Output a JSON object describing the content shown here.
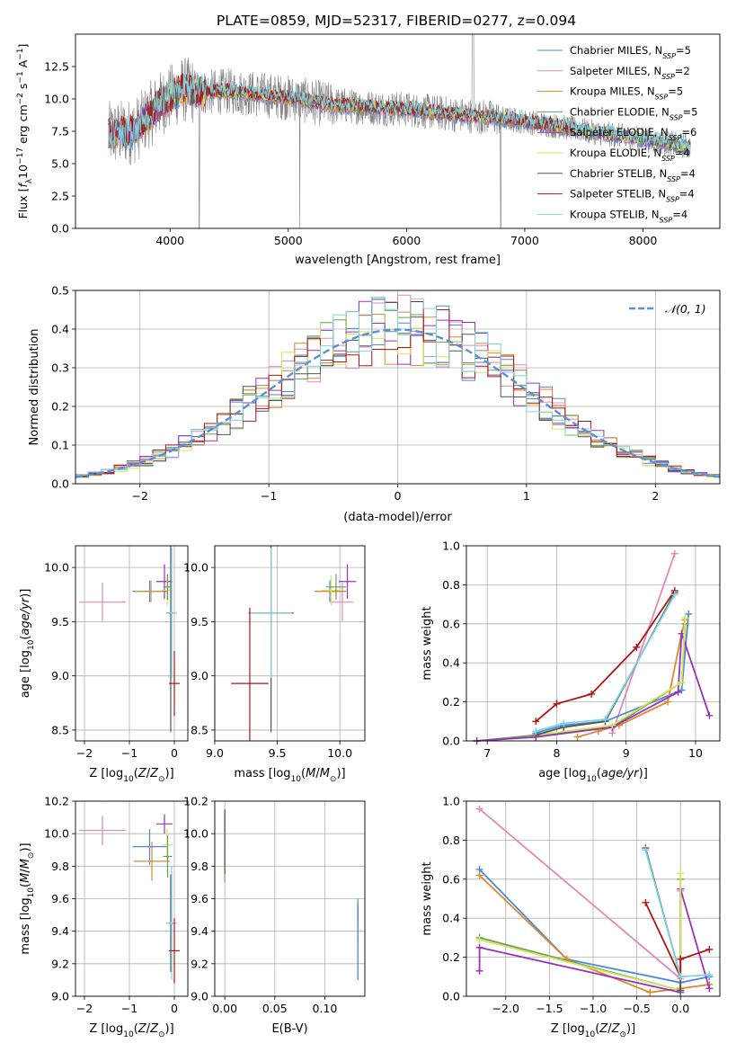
{
  "figure": {
    "title": "PLATE=0859, MJD=52317, FIBERID=0277, z=0.094"
  },
  "colors": {
    "chabrier_miles": "#4d8ad9",
    "salpeter_miles": "#e08ab8",
    "kroupa_miles": "#d98a33",
    "chabrier_elodie": "#6e9e55",
    "salpeter_elodie": "#9933bb",
    "kroupa_elodie": "#d6e65a",
    "chabrier_stelib": "#555555",
    "salpeter_stelib": "#b01515",
    "kroupa_stelib": "#7fd3e0",
    "data": "#808080",
    "normal": "#5b8fd6"
  },
  "legend": {
    "spectrum": [
      {
        "key": "chabrier_miles",
        "label": "Chabrier MILES, N",
        "sub": "SSP",
        "tail": "=5"
      },
      {
        "key": "salpeter_miles",
        "label": "Salpeter MILES, N",
        "sub": "SSP",
        "tail": "=2"
      },
      {
        "key": "kroupa_miles",
        "label": "Kroupa MILES, N",
        "sub": "SSP",
        "tail": "=5"
      },
      {
        "key": "chabrier_elodie",
        "label": "Chabrier ELODIE, N",
        "sub": "SSP",
        "tail": "=5"
      },
      {
        "key": "salpeter_elodie",
        "label": "Salpeter ELODIE, N",
        "sub": "SSP",
        "tail": "=6"
      },
      {
        "key": "kroupa_elodie",
        "label": "Kroupa ELODIE, N",
        "sub": "SSP",
        "tail": "=4"
      },
      {
        "key": "chabrier_stelib",
        "label": "Chabrier STELIB, N",
        "sub": "SSP",
        "tail": "=4"
      },
      {
        "key": "salpeter_stelib",
        "label": "Salpeter STELIB, N",
        "sub": "SSP",
        "tail": "=4"
      },
      {
        "key": "kroupa_stelib",
        "label": "Kroupa STELIB, N",
        "sub": "SSP",
        "tail": "=4"
      }
    ],
    "histogram": "𝒩(0, 1)"
  },
  "chart_data": [
    {
      "id": "spectrum",
      "type": "line",
      "xlabel": "wavelength [Angstrom, rest frame]",
      "ylabel": "Flux [fλ10⁻¹⁷ erg cm⁻² s⁻¹ A⁻¹]",
      "xlim": [
        3200,
        8650
      ],
      "ylim": [
        0,
        15
      ],
      "xticks": [
        4000,
        5000,
        6000,
        7000,
        8000
      ],
      "yticks": [
        0.0,
        2.5,
        5.0,
        7.5,
        10.0,
        12.5
      ],
      "model_continuum": {
        "x": [
          3500,
          3700,
          3900,
          4100,
          4300,
          4500,
          4800,
          5000,
          5300,
          5600,
          6000,
          6400,
          6800,
          7200,
          7600,
          8000,
          8400
        ],
        "y": [
          7.3,
          7.5,
          9.5,
          10.7,
          10.5,
          10.6,
          10.3,
          10.1,
          9.6,
          9.4,
          9.2,
          8.8,
          8.5,
          8.0,
          7.4,
          6.9,
          6.3
        ]
      }
    },
    {
      "id": "residuals",
      "type": "histogram",
      "xlabel": "(data-model)/error",
      "ylabel": "Normed distribution",
      "xlim": [
        -2.5,
        2.5
      ],
      "ylim": [
        0,
        0.5
      ],
      "xticks": [
        -2,
        -1,
        0,
        1,
        2
      ],
      "yticks": [
        0.0,
        0.1,
        0.2,
        0.3,
        0.4,
        0.5
      ],
      "bins": {
        "start": -2.5,
        "width": 0.1,
        "count": 50
      }
    },
    {
      "id": "age_vs_Z",
      "type": "errorbar",
      "xlabel": "Z [log10(Z/Z☉)]",
      "ylabel": "age [log10(age/yr)]",
      "xlim": [
        -2.2,
        0.3
      ],
      "ylim": [
        8.4,
        10.2
      ],
      "xticks": [
        -2,
        -1,
        0
      ],
      "yticks": [
        8.5,
        9.0,
        9.5,
        10.0
      ],
      "points": [
        {
          "key": "salpeter_miles",
          "x": -1.6,
          "y": 9.68,
          "xerr": 0.52,
          "yerr": 0.18
        },
        {
          "key": "chabrier_miles",
          "x": -0.55,
          "y": 9.78,
          "xerr": 0.38,
          "yerr": 0.1
        },
        {
          "key": "kroupa_miles",
          "x": -0.52,
          "y": 9.78,
          "xerr": 0.38,
          "yerr": 0.1
        },
        {
          "key": "salpeter_elodie",
          "x": -0.22,
          "y": 9.87,
          "xerr": 0.18,
          "yerr": 0.16
        },
        {
          "key": "kroupa_elodie",
          "x": -0.16,
          "y": 9.79,
          "xerr": 0.12,
          "yerr": 0.14
        },
        {
          "key": "chabrier_elodie",
          "x": -0.15,
          "y": 9.82,
          "xerr": 0.1,
          "yerr": 0.12
        },
        {
          "key": "chabrier_stelib",
          "x": -0.08,
          "y": 9.58,
          "xerr": 0.1,
          "yerr": 1.1
        },
        {
          "key": "kroupa_stelib",
          "x": -0.06,
          "y": 9.58,
          "xerr": 0.12,
          "yerr": 0.6
        },
        {
          "key": "salpeter_stelib",
          "x": 0.0,
          "y": 8.93,
          "xerr": 0.12,
          "yerr": 0.3
        }
      ]
    },
    {
      "id": "age_vs_mass",
      "type": "errorbar",
      "xlabel": "mass [log10(M/M☉)]",
      "ylabel": "",
      "xlim": [
        9.0,
        10.2
      ],
      "ylim": [
        8.4,
        10.2
      ],
      "xticks": [
        9.0,
        9.5,
        10.0
      ],
      "yticks": [
        8.5,
        9.0,
        9.5,
        10.0
      ],
      "points": [
        {
          "key": "salpeter_miles",
          "x": 10.02,
          "y": 9.68,
          "xerr": 0.09,
          "yerr": 0.18
        },
        {
          "key": "chabrier_miles",
          "x": 9.92,
          "y": 9.78,
          "xerr": 0.12,
          "yerr": 0.1
        },
        {
          "key": "kroupa_miles",
          "x": 9.93,
          "y": 9.78,
          "xerr": 0.12,
          "yerr": 0.12
        },
        {
          "key": "salpeter_elodie",
          "x": 10.06,
          "y": 9.87,
          "xerr": 0.07,
          "yerr": 0.16
        },
        {
          "key": "kroupa_elodie",
          "x": 9.93,
          "y": 9.79,
          "xerr": 0.08,
          "yerr": 0.14
        },
        {
          "key": "chabrier_elodie",
          "x": 9.97,
          "y": 9.82,
          "xerr": 0.08,
          "yerr": 0.12
        },
        {
          "key": "chabrier_stelib",
          "x": 9.45,
          "y": 9.58,
          "xerr": 0.18,
          "yerr": 1.1
        },
        {
          "key": "kroupa_stelib",
          "x": 9.45,
          "y": 9.58,
          "xerr": 0.17,
          "yerr": 0.6
        },
        {
          "key": "salpeter_stelib",
          "x": 9.28,
          "y": 8.93,
          "xerr": 0.15,
          "yerr": 0.7
        }
      ]
    },
    {
      "id": "weight_vs_age",
      "type": "line",
      "xlabel": "age [log10(age/yr)]",
      "ylabel": "mass weight",
      "xlim": [
        6.7,
        10.35
      ],
      "ylim": [
        0,
        1.0
      ],
      "xticks": [
        7,
        8,
        9,
        10
      ],
      "yticks": [
        0.0,
        0.2,
        0.4,
        0.6,
        0.8,
        1.0
      ],
      "series": [
        {
          "key": "salpeter_miles",
          "x": [
            8.8,
            9.7
          ],
          "y": [
            0.04,
            0.96
          ]
        },
        {
          "key": "chabrier_miles",
          "x": [
            7.7,
            8.1,
            8.7,
            9.8,
            9.9
          ],
          "y": [
            0.04,
            0.08,
            0.1,
            0.26,
            0.65
          ]
        },
        {
          "key": "kroupa_miles",
          "x": [
            8.3,
            8.6,
            8.9,
            9.6,
            9.8,
            9.85
          ],
          "y": [
            0.02,
            0.05,
            0.08,
            0.2,
            0.55,
            0.62
          ]
        },
        {
          "key": "chabrier_elodie",
          "x": [
            6.85,
            7.7,
            8.8,
            9.8,
            9.85
          ],
          "y": [
            0.0,
            0.03,
            0.07,
            0.3,
            0.6
          ]
        },
        {
          "key": "salpeter_elodie",
          "x": [
            6.85,
            7.7,
            8.8,
            9.75,
            9.8,
            10.2
          ],
          "y": [
            0.0,
            0.02,
            0.07,
            0.25,
            0.55,
            0.13
          ]
        },
        {
          "key": "kroupa_elodie",
          "x": [
            7.7,
            8.8,
            9.8,
            9.85
          ],
          "y": [
            0.03,
            0.08,
            0.3,
            0.63
          ]
        },
        {
          "key": "chabrier_stelib",
          "x": [
            7.7,
            8.1,
            8.7,
            9.7
          ],
          "y": [
            0.03,
            0.07,
            0.1,
            0.76
          ]
        },
        {
          "key": "salpeter_stelib",
          "x": [
            7.7,
            8.0,
            8.5,
            9.15,
            9.7
          ],
          "y": [
            0.1,
            0.19,
            0.24,
            0.48,
            0.77
          ]
        },
        {
          "key": "kroupa_stelib",
          "x": [
            7.7,
            8.1,
            8.7,
            9.7
          ],
          "y": [
            0.05,
            0.09,
            0.11,
            0.75
          ]
        }
      ]
    },
    {
      "id": "mass_vs_Z",
      "type": "errorbar",
      "xlabel": "Z [log10(Z/Z☉)]",
      "ylabel": "mass [log10(M/M☉)]",
      "xlim": [
        -2.2,
        0.3
      ],
      "ylim": [
        9.0,
        10.2
      ],
      "xticks": [
        -2,
        -1,
        0
      ],
      "yticks": [
        9.0,
        9.2,
        9.4,
        9.6,
        9.8,
        10.0,
        10.2
      ],
      "points": [
        {
          "key": "salpeter_miles",
          "x": -1.6,
          "y": 10.02,
          "xerr": 0.52,
          "yerr": 0.09
        },
        {
          "key": "chabrier_miles",
          "x": -0.55,
          "y": 9.92,
          "xerr": 0.38,
          "yerr": 0.11
        },
        {
          "key": "kroupa_miles",
          "x": -0.5,
          "y": 9.83,
          "xerr": 0.4,
          "yerr": 0.12
        },
        {
          "key": "salpeter_elodie",
          "x": -0.22,
          "y": 10.06,
          "xerr": 0.18,
          "yerr": 0.06
        },
        {
          "key": "kroupa_elodie",
          "x": -0.16,
          "y": 9.93,
          "xerr": 0.12,
          "yerr": 0.1
        },
        {
          "key": "chabrier_elodie",
          "x": -0.15,
          "y": 9.86,
          "xerr": 0.1,
          "yerr": 0.13
        },
        {
          "key": "chabrier_stelib",
          "x": -0.08,
          "y": 9.45,
          "xerr": 0.1,
          "yerr": 0.3
        },
        {
          "key": "kroupa_stelib",
          "x": -0.06,
          "y": 9.45,
          "xerr": 0.12,
          "yerr": 0.35
        },
        {
          "key": "salpeter_stelib",
          "x": 0.0,
          "y": 9.28,
          "xerr": 0.12,
          "yerr": 0.2
        }
      ]
    },
    {
      "id": "mass_vs_ebv",
      "type": "errorbar",
      "xlabel": "E(B-V)",
      "ylabel": "",
      "xlim": [
        -0.01,
        0.14
      ],
      "ylim": [
        9.0,
        10.2
      ],
      "xticks": [
        0.0,
        0.05,
        0.1
      ],
      "yticks": [
        9.0,
        9.2,
        9.4,
        9.6,
        9.8,
        10.0,
        10.2
      ],
      "points": [
        {
          "key": "salpeter_elodie",
          "x": 0.0,
          "y": 10.04,
          "xerr": 0.0,
          "yerr": 0.1
        },
        {
          "key": "kroupa_elodie",
          "x": 0.0,
          "y": 9.9,
          "xerr": 0.0,
          "yerr": 0.1
        },
        {
          "key": "chabrier_elodie",
          "x": 0.0,
          "y": 9.85,
          "xerr": 0.0,
          "yerr": 0.15
        },
        {
          "key": "chabrier_stelib",
          "x": 0.0,
          "y": 9.95,
          "xerr": 0.0,
          "yerr": 0.2
        },
        {
          "key": "salpeter_stelib",
          "x": 0.133,
          "y": 9.45,
          "xerr": 0.0,
          "yerr": 0.12
        },
        {
          "key": "kroupa_stelib",
          "x": 0.133,
          "y": 9.28,
          "xerr": 0.0,
          "yerr": 0.18
        },
        {
          "key": "chabrier_miles",
          "x": 0.133,
          "y": 9.35,
          "xerr": 0.0,
          "yerr": 0.25
        }
      ]
    },
    {
      "id": "weight_vs_Z",
      "type": "line",
      "xlabel": "Z [log10(Z/Z☉)]",
      "ylabel": "mass weight",
      "xlim": [
        -2.45,
        0.45
      ],
      "ylim": [
        0,
        1.0
      ],
      "xticks": [
        -2.0,
        -1.5,
        -1.0,
        -0.5,
        0.0
      ],
      "yticks": [
        0.0,
        0.2,
        0.4,
        0.6,
        0.8,
        1.0
      ],
      "series": [
        {
          "key": "salpeter_miles",
          "x": [
            -2.3,
            0.0,
            0.0
          ],
          "y": [
            0.96,
            0.09,
            0.54
          ]
        },
        {
          "key": "chabrier_miles",
          "x": [
            -2.3,
            -1.3,
            0.0,
            0.33
          ],
          "y": [
            0.65,
            0.19,
            0.07,
            0.1
          ]
        },
        {
          "key": "kroupa_miles",
          "x": [
            -2.3,
            -1.3,
            -0.35,
            0.0,
            0.33
          ],
          "y": [
            0.62,
            0.19,
            0.02,
            0.04,
            0.06
          ]
        },
        {
          "key": "chabrier_elodie",
          "x": [
            -2.3,
            0.0,
            0.0
          ],
          "y": [
            0.3,
            0.03,
            0.6
          ]
        },
        {
          "key": "salpeter_elodie",
          "x": [
            -2.3,
            -2.3,
            0.0,
            0.0,
            0.33
          ],
          "y": [
            0.13,
            0.25,
            0.02,
            0.55,
            0.04
          ]
        },
        {
          "key": "kroupa_elodie",
          "x": [
            -2.3,
            0.0,
            0.0
          ],
          "y": [
            0.29,
            0.03,
            0.63
          ]
        },
        {
          "key": "chabrier_stelib",
          "x": [
            -0.4,
            0.0,
            0.0
          ],
          "y": [
            0.76,
            0.1,
            0.03
          ]
        },
        {
          "key": "salpeter_stelib",
          "x": [
            -0.4,
            -0.0,
            0.0,
            0.33
          ],
          "y": [
            0.48,
            0.1,
            0.19,
            0.24
          ]
        },
        {
          "key": "kroupa_stelib",
          "x": [
            -0.4,
            0.0,
            0.33
          ],
          "y": [
            0.75,
            0.1,
            0.11
          ]
        }
      ]
    }
  ]
}
